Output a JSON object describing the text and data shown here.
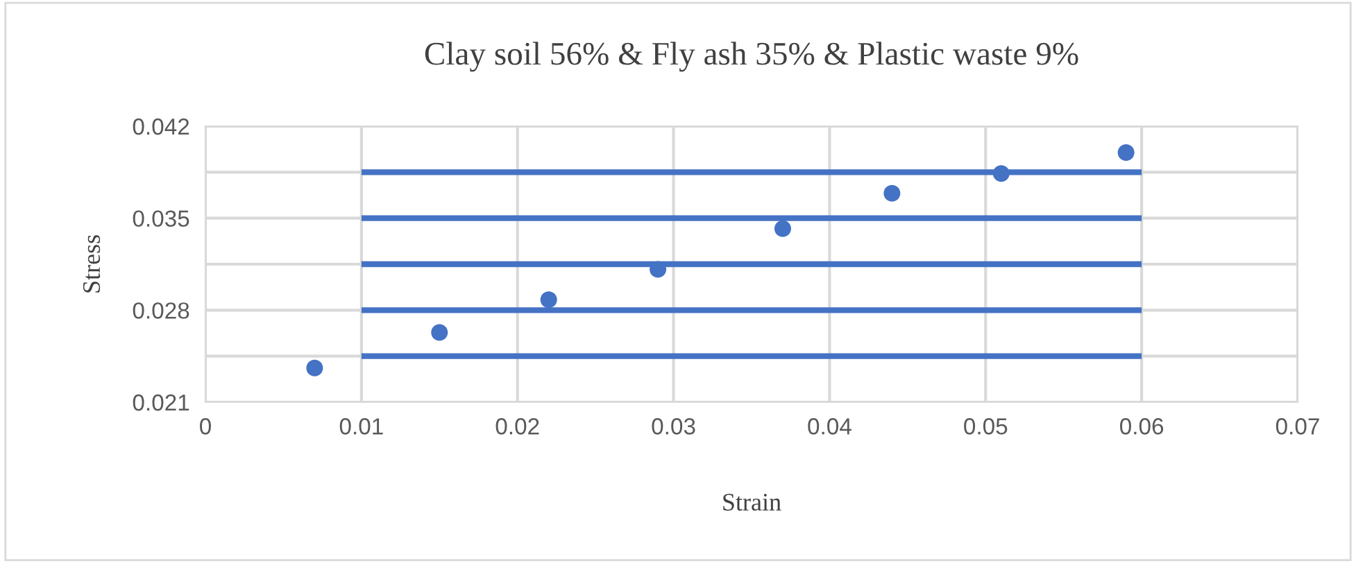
{
  "chart_data": {
    "type": "scatter",
    "title": "Clay soil 56% & Fly ash 35% & Plastic waste 9%",
    "xlabel": "Strain",
    "ylabel": "Stress",
    "xlim": [
      0,
      0.07
    ],
    "xticks": [
      0,
      0.01,
      0.02,
      0.03,
      0.04,
      0.05,
      0.06,
      0.07
    ],
    "ylim": [
      0.021,
      0.042
    ],
    "yticks": [
      0.021,
      {
        "value": 0.0245,
        "label": null
      },
      0.028,
      {
        "value": 0.0315,
        "label": null
      },
      0.035,
      {
        "value": 0.0385,
        "label": null
      },
      0.042
    ],
    "grid": true,
    "legend": false,
    "marker": "circle",
    "series": [
      {
        "color": "#4472c4",
        "x": [
          0.007,
          0.015,
          0.022,
          0.029,
          0.037,
          0.044,
          0.051,
          0.059
        ],
        "values": [
          0.0236,
          0.0263,
          0.0288,
          0.0311,
          0.0342,
          0.0369,
          0.0384,
          0.04
        ]
      },
      {
        "type": "line",
        "color": "#4472c4",
        "x": [
          0.01,
          0.06
        ],
        "values": [
          0.0385,
          0.0385
        ],
        "marker": "none"
      },
      {
        "type": "line",
        "color": "#4472c4",
        "x": [
          0.01,
          0.06
        ],
        "values": [
          0.035,
          0.035
        ],
        "marker": "none"
      },
      {
        "type": "line",
        "color": "#4472c4",
        "x": [
          0.01,
          0.06
        ],
        "values": [
          0.0315,
          0.0315
        ],
        "marker": "none"
      },
      {
        "type": "line",
        "color": "#4472c4",
        "x": [
          0.01,
          0.06
        ],
        "values": [
          0.028,
          0.028
        ],
        "marker": "none"
      },
      {
        "type": "line",
        "color": "#4472c4",
        "x": [
          0.01,
          0.06
        ],
        "values": [
          0.0245,
          0.0245
        ],
        "marker": "none"
      }
    ]
  }
}
